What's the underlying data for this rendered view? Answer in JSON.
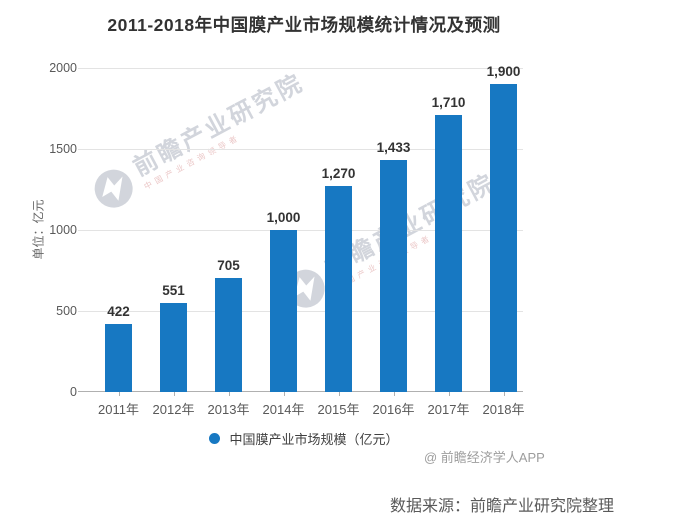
{
  "chart_data": {
    "type": "bar",
    "title": "2011-2018年中国膜产业市场规模统计情况及预测",
    "categories": [
      "2011年",
      "2012年",
      "2013年",
      "2014年",
      "2015年",
      "2016年",
      "2017年",
      "2018年"
    ],
    "values": [
      422,
      551,
      705,
      1000,
      1270,
      1433,
      1710,
      1900
    ],
    "value_labels": [
      "422",
      "551",
      "705",
      "1,000",
      "1,270",
      "1,433",
      "1,710",
      "1,900"
    ],
    "xlabel": "",
    "ylabel": "单位：亿元",
    "ylim": [
      0,
      2000
    ],
    "yticks": [
      0,
      500,
      1000,
      1500,
      2000
    ],
    "grid": true,
    "legend_position": "bottom",
    "legend": "中国膜产业市场规模（亿元）",
    "bar_color": "#1778c2"
  },
  "watermark": {
    "text": "前瞻产业研究院",
    "subtext": "中国产业咨询领导者"
  },
  "attribution": "@ 前瞻经济学人APP",
  "source": "数据来源：前瞻产业研究院整理",
  "colors": {
    "bar": "#1778c2",
    "grid": "#e3e3e3",
    "axis": "#b0b0b0",
    "title_text": "#333333",
    "tick_text": "#595959",
    "value_text": "#333333",
    "watermark_gray": "#c3c8d1",
    "watermark_red": "#e4b3b3",
    "attribution_text": "#9d9d9d",
    "source_text": "#595959"
  }
}
